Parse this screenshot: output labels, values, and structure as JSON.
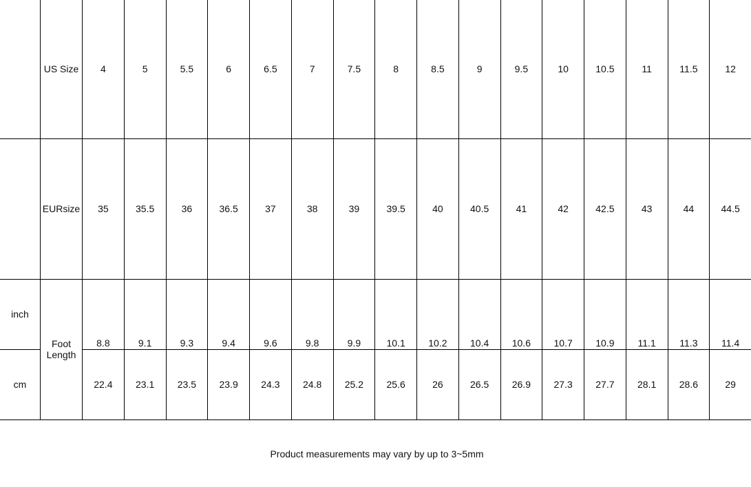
{
  "table": {
    "us_label": "US Size",
    "eur_label": "EURsize",
    "foot_length_label": "Foot Length",
    "inch_label": "inch",
    "cm_label": "cm",
    "us": [
      "4",
      "5",
      "5.5",
      "6",
      "6.5",
      "7",
      "7.5",
      "8",
      "8.5",
      "9",
      "9.5",
      "10",
      "10.5",
      "11",
      "11.5",
      "12"
    ],
    "eur": [
      "35",
      "35.5",
      "36",
      "36.5",
      "37",
      "38",
      "39",
      "39.5",
      "40",
      "40.5",
      "41",
      "42",
      "42.5",
      "43",
      "44",
      "44.5"
    ],
    "inch": [
      "8.8",
      "9.1",
      "9.3",
      "9.4",
      "9.6",
      "9.8",
      "9.9",
      "10.1",
      "10.2",
      "10.4",
      "10.6",
      "10.7",
      "10.9",
      "11.1",
      "11.3",
      "11.4"
    ],
    "cm": [
      "22.4",
      "23.1",
      "23.5",
      "23.9",
      "24.3",
      "24.8",
      "25.2",
      "25.6",
      "26",
      "26.5",
      "26.9",
      "27.3",
      "27.7",
      "28.1",
      "28.6",
      "29"
    ]
  },
  "note": "Product measurements may vary by up to 3~5mm"
}
